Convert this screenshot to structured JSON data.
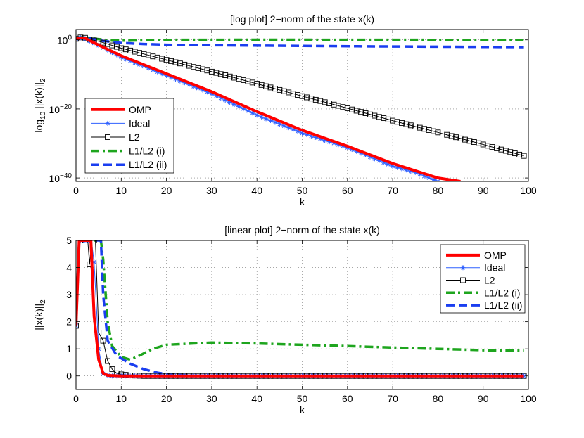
{
  "figure": {
    "background": "#ffffff"
  },
  "chart_data": [
    {
      "id": "log",
      "type": "line",
      "title": "[log plot] 2−norm of the state x(k)",
      "xlabel": "k",
      "ylabel_parts": [
        "log",
        "10",
        " ||x(k)||",
        "2"
      ],
      "xlim": [
        0,
        100
      ],
      "ylim": [
        -41,
        3
      ],
      "yscale": "log10",
      "grid": true,
      "x_ticks": [
        0,
        10,
        20,
        30,
        40,
        50,
        60,
        70,
        80,
        90,
        100
      ],
      "x_tick_labels": [
        "0",
        "10",
        "20",
        "30",
        "40",
        "50",
        "60",
        "70",
        "80",
        "90",
        "100"
      ],
      "y_ticks": [
        0,
        -20,
        -40
      ],
      "y_tick_labels": [
        {
          "base": "10",
          "exp": "0"
        },
        {
          "base": "10",
          "exp": "−20"
        },
        {
          "base": "10",
          "exp": "−40"
        }
      ],
      "legend": {
        "position": "bottom-left",
        "entries": [
          "OMP",
          "Ideal",
          "L2",
          "L1/L2 (i)",
          "L1/L2 (ii)"
        ]
      },
      "series": [
        {
          "name": "OMP",
          "color": "#ff0000",
          "style": "solid",
          "width": 4,
          "marker": "none",
          "points": [
            [
              0,
              0.3
            ],
            [
              1,
              0.6
            ],
            [
              2,
              0.5
            ],
            [
              3,
              -0.2
            ],
            [
              5,
              -1.5
            ],
            [
              10,
              -4.6
            ],
            [
              20,
              -9.8
            ],
            [
              30,
              -15.0
            ],
            [
              40,
              -20.8
            ],
            [
              50,
              -26.2
            ],
            [
              60,
              -30.8
            ],
            [
              70,
              -35.8
            ],
            [
              80,
              -40.0
            ],
            [
              85,
              -41.0
            ]
          ]
        },
        {
          "name": "Ideal",
          "color": "#2f60ff",
          "style": "solid",
          "width": 1,
          "marker": "star",
          "points": [
            [
              0,
              0.3
            ],
            [
              1,
              0.6
            ],
            [
              2,
              0.4
            ],
            [
              3,
              -0.3
            ],
            [
              5,
              -1.6
            ],
            [
              10,
              -5.0
            ],
            [
              20,
              -10.3
            ],
            [
              30,
              -15.6
            ],
            [
              40,
              -21.8
            ],
            [
              50,
              -27.0
            ],
            [
              60,
              -31.2
            ],
            [
              70,
              -36.6
            ],
            [
              75,
              -38.4
            ],
            [
              80,
              -41.0
            ]
          ]
        },
        {
          "name": "L2",
          "color": "#000000",
          "style": "solid",
          "width": 1,
          "marker": "square",
          "points": [
            [
              0,
              0.3
            ],
            [
              1,
              0.7
            ],
            [
              2,
              0.6
            ],
            [
              3,
              0.1
            ],
            [
              5,
              -0.4
            ],
            [
              10,
              -2.4
            ],
            [
              20,
              -5.8
            ],
            [
              30,
              -9.2
            ],
            [
              40,
              -12.7
            ],
            [
              50,
              -16.3
            ],
            [
              60,
              -19.8
            ],
            [
              70,
              -23.4
            ],
            [
              80,
              -26.8
            ],
            [
              90,
              -30.3
            ],
            [
              99,
              -33.6
            ]
          ]
        },
        {
          "name": "L1/L2 (i)",
          "color": "#1ea51e",
          "style": "dashdot",
          "width": 3.5,
          "marker": "none",
          "points": [
            [
              0,
              0.3
            ],
            [
              1,
              0.8
            ],
            [
              3,
              0.6
            ],
            [
              5,
              0.2
            ],
            [
              8,
              -0.2
            ],
            [
              12,
              -0.2
            ],
            [
              20,
              0.0
            ],
            [
              40,
              0.05
            ],
            [
              60,
              0.02
            ],
            [
              80,
              0.0
            ],
            [
              99,
              -0.05
            ]
          ]
        },
        {
          "name": "L1/L2 (ii)",
          "color": "#1a3ef0",
          "style": "dashed",
          "width": 3.5,
          "marker": "none",
          "points": [
            [
              0,
              0.3
            ],
            [
              1,
              0.7
            ],
            [
              3,
              0.5
            ],
            [
              6,
              -0.3
            ],
            [
              10,
              -0.9
            ],
            [
              15,
              -1.2
            ],
            [
              20,
              -1.4
            ],
            [
              30,
              -1.55
            ],
            [
              50,
              -1.75
            ],
            [
              70,
              -1.9
            ],
            [
              99,
              -2.1
            ]
          ]
        }
      ]
    },
    {
      "id": "linear",
      "type": "line",
      "title": "[linear plot] 2−norm of the state x(k)",
      "xlabel": "k",
      "ylabel_parts": [
        "||x(k)||",
        "2"
      ],
      "xlim": [
        0,
        100
      ],
      "ylim": [
        -0.5,
        5
      ],
      "grid": true,
      "x_ticks": [
        0,
        10,
        20,
        30,
        40,
        50,
        60,
        70,
        80,
        90,
        100
      ],
      "x_tick_labels": [
        "0",
        "10",
        "20",
        "30",
        "40",
        "50",
        "60",
        "70",
        "80",
        "90",
        "100"
      ],
      "y_ticks": [
        0,
        1,
        2,
        3,
        4,
        5
      ],
      "y_tick_labels": [
        "0",
        "1",
        "2",
        "3",
        "4",
        "5"
      ],
      "legend": {
        "position": "top-right",
        "entries": [
          "OMP",
          "Ideal",
          "L2",
          "L1/L2 (i)",
          "L1/L2 (ii)"
        ]
      },
      "series": [
        {
          "name": "OMP",
          "color": "#ff0000",
          "style": "solid",
          "width": 4,
          "marker": "none",
          "points": [
            [
              0,
              1.85
            ],
            [
              0.7,
              5
            ],
            [
              3.3,
              5
            ],
            [
              4,
              2.2
            ],
            [
              5,
              0.6
            ],
            [
              6,
              0.1
            ],
            [
              7,
              0.02
            ],
            [
              10,
              0.0
            ],
            [
              99,
              0.0
            ]
          ]
        },
        {
          "name": "Ideal",
          "color": "#2f60ff",
          "style": "solid",
          "width": 1,
          "marker": "star",
          "points": [
            [
              0,
              1.85
            ],
            [
              0.7,
              5
            ],
            [
              3.4,
              5
            ],
            [
              4,
              4.2
            ],
            [
              5,
              1.0
            ],
            [
              6,
              0.08
            ],
            [
              7,
              0.02
            ],
            [
              8,
              0.0
            ],
            [
              99,
              0.0
            ]
          ]
        },
        {
          "name": "L2",
          "color": "#000000",
          "style": "solid",
          "width": 1,
          "marker": "square",
          "points": [
            [
              0,
              1.85
            ],
            [
              0.7,
              5
            ],
            [
              2.6,
              5
            ],
            [
              3,
              4.12
            ],
            [
              3.4,
              5
            ],
            [
              4.3,
              5
            ],
            [
              5,
              1.6
            ],
            [
              6,
              1.3
            ],
            [
              7,
              0.55
            ],
            [
              8,
              0.25
            ],
            [
              9,
              0.1
            ],
            [
              10,
              0.06
            ],
            [
              12,
              0.02
            ],
            [
              15,
              0.0
            ],
            [
              99,
              0.0
            ]
          ]
        },
        {
          "name": "L1/L2 (i)",
          "color": "#1ea51e",
          "style": "dashdot",
          "width": 3.5,
          "marker": "none",
          "points": [
            [
              0,
              1.85
            ],
            [
              0.7,
              5
            ],
            [
              5.5,
              5
            ],
            [
              6,
              4.3
            ],
            [
              7,
              2.0
            ],
            [
              8,
              1.1
            ],
            [
              10,
              0.7
            ],
            [
              12,
              0.6
            ],
            [
              14,
              0.75
            ],
            [
              17,
              1.0
            ],
            [
              20,
              1.15
            ],
            [
              30,
              1.23
            ],
            [
              40,
              1.2
            ],
            [
              50,
              1.15
            ],
            [
              60,
              1.1
            ],
            [
              70,
              1.05
            ],
            [
              80,
              1.0
            ],
            [
              90,
              0.95
            ],
            [
              99,
              0.93
            ]
          ]
        },
        {
          "name": "L1/L2 (ii)",
          "color": "#1a3ef0",
          "style": "dashed",
          "width": 3.5,
          "marker": "none",
          "points": [
            [
              0,
              1.85
            ],
            [
              0.7,
              5
            ],
            [
              5.5,
              5
            ],
            [
              6,
              3.0
            ],
            [
              7,
              1.3
            ],
            [
              9,
              0.75
            ],
            [
              12,
              0.45
            ],
            [
              15,
              0.25
            ],
            [
              18,
              0.12
            ],
            [
              20,
              0.07
            ],
            [
              25,
              0.01
            ],
            [
              30,
              0.0
            ],
            [
              99,
              0.0
            ]
          ]
        }
      ]
    }
  ]
}
